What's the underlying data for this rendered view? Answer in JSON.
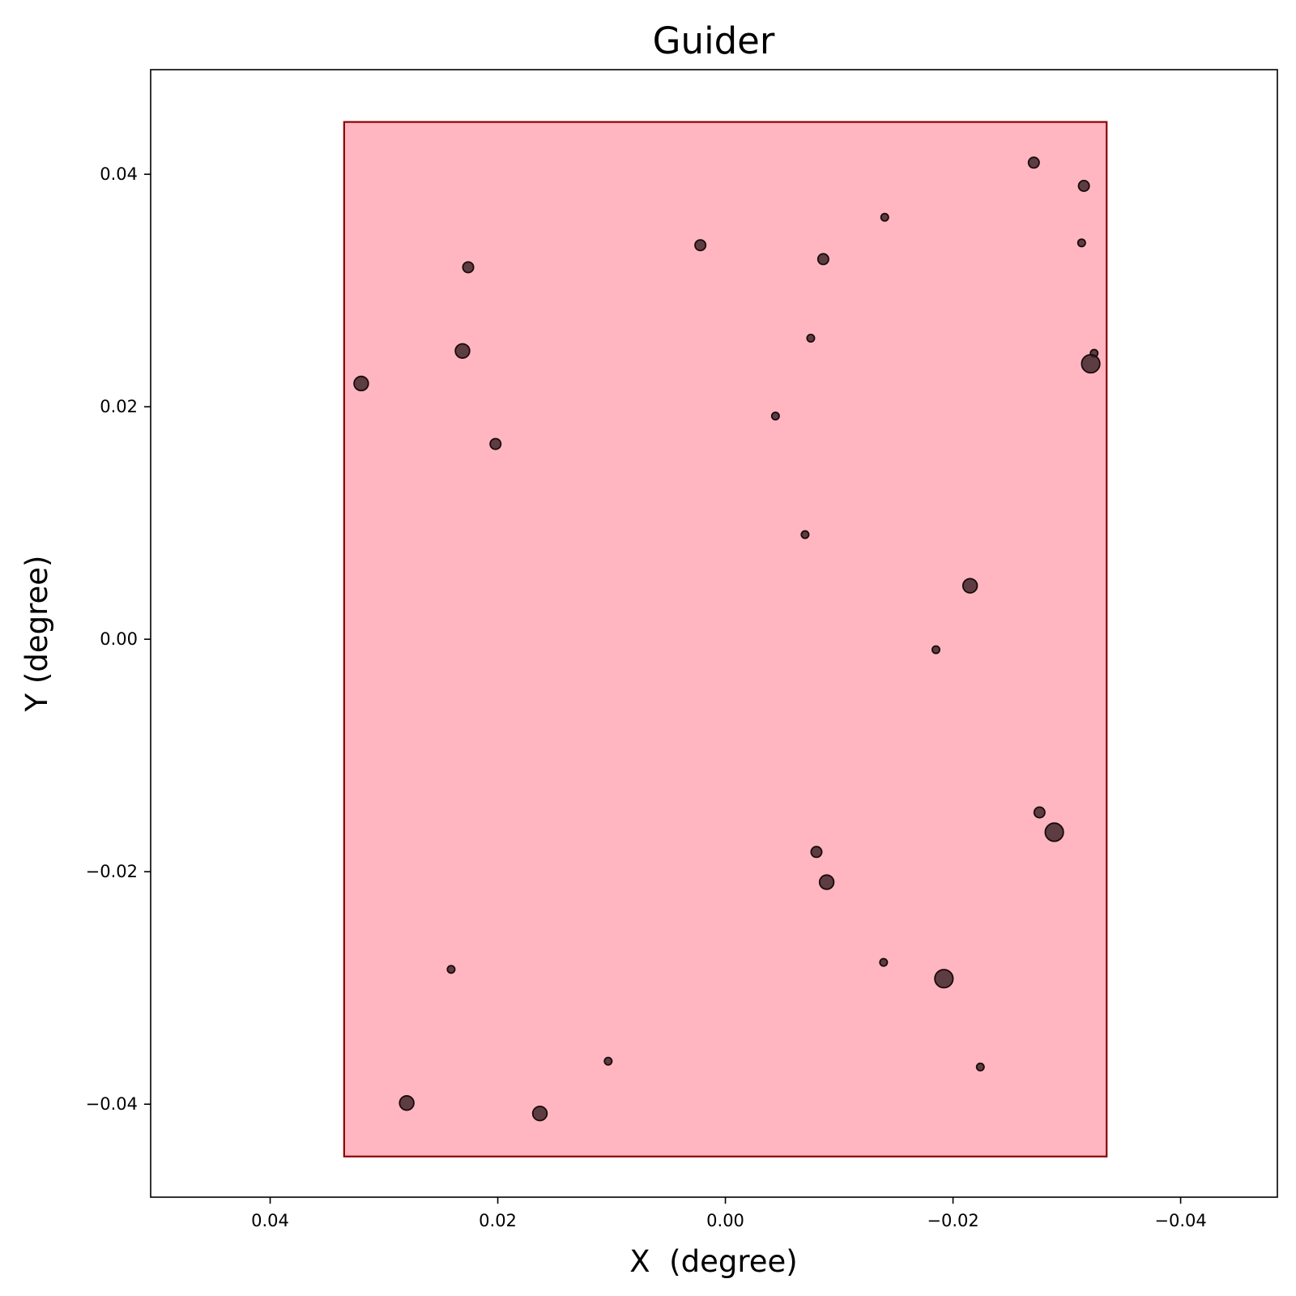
{
  "chart_data": {
    "type": "scatter",
    "title": "Guider",
    "xlabel": "X  (degree)",
    "ylabel": "Y (degree)",
    "x_axis_inverted": true,
    "xlim": [
      0.0505,
      -0.0485
    ],
    "ylim": [
      -0.048,
      0.049
    ],
    "x_ticks": [
      0.04,
      0.02,
      0.0,
      -0.02,
      -0.04
    ],
    "x_tick_labels": [
      "0.04",
      "0.02",
      "0.00",
      "−0.02",
      "−0.04"
    ],
    "y_ticks": [
      0.04,
      0.02,
      0.0,
      -0.02,
      -0.04
    ],
    "y_tick_labels": [
      "0.04",
      "0.02",
      "0.00",
      "−0.02",
      "−0.04"
    ],
    "grid": false,
    "guider_region": {
      "x": [
        0.0335,
        -0.0335
      ],
      "y": [
        -0.0445,
        0.0445
      ],
      "fill_color": "#ffb6c1",
      "edge_color": "#8b0000"
    },
    "marker_color": "#3a2226",
    "marker_edge_color": "#1a0a0c",
    "points": [
      {
        "x": -0.0271,
        "y": 0.041,
        "size": 2
      },
      {
        "x": -0.0315,
        "y": 0.039,
        "size": 2
      },
      {
        "x": -0.014,
        "y": 0.0363,
        "size": 1
      },
      {
        "x": -0.0313,
        "y": 0.0341,
        "size": 1
      },
      {
        "x": 0.0022,
        "y": 0.0339,
        "size": 2
      },
      {
        "x": -0.0086,
        "y": 0.0327,
        "size": 2
      },
      {
        "x": 0.0226,
        "y": 0.032,
        "size": 2
      },
      {
        "x": -0.0075,
        "y": 0.0259,
        "size": 1
      },
      {
        "x": 0.0231,
        "y": 0.0248,
        "size": 3
      },
      {
        "x": -0.0324,
        "y": 0.0246,
        "size": 1
      },
      {
        "x": -0.0321,
        "y": 0.0237,
        "size": 4
      },
      {
        "x": 0.032,
        "y": 0.022,
        "size": 3
      },
      {
        "x": -0.0044,
        "y": 0.0192,
        "size": 1
      },
      {
        "x": 0.0202,
        "y": 0.0168,
        "size": 2
      },
      {
        "x": -0.007,
        "y": 0.009,
        "size": 1
      },
      {
        "x": -0.0215,
        "y": 0.0046,
        "size": 3
      },
      {
        "x": -0.0185,
        "y": -0.0009,
        "size": 1
      },
      {
        "x": -0.0276,
        "y": -0.0149,
        "size": 2
      },
      {
        "x": -0.0289,
        "y": -0.0166,
        "size": 4
      },
      {
        "x": -0.008,
        "y": -0.0183,
        "size": 2
      },
      {
        "x": -0.0089,
        "y": -0.0209,
        "size": 3
      },
      {
        "x": -0.0139,
        "y": -0.0278,
        "size": 1
      },
      {
        "x": -0.0192,
        "y": -0.0292,
        "size": 4
      },
      {
        "x": 0.0241,
        "y": -0.0284,
        "size": 1
      },
      {
        "x": 0.0103,
        "y": -0.0363,
        "size": 1
      },
      {
        "x": -0.0224,
        "y": -0.0368,
        "size": 1
      },
      {
        "x": 0.028,
        "y": -0.0399,
        "size": 3
      },
      {
        "x": 0.0163,
        "y": -0.0408,
        "size": 3
      }
    ]
  }
}
